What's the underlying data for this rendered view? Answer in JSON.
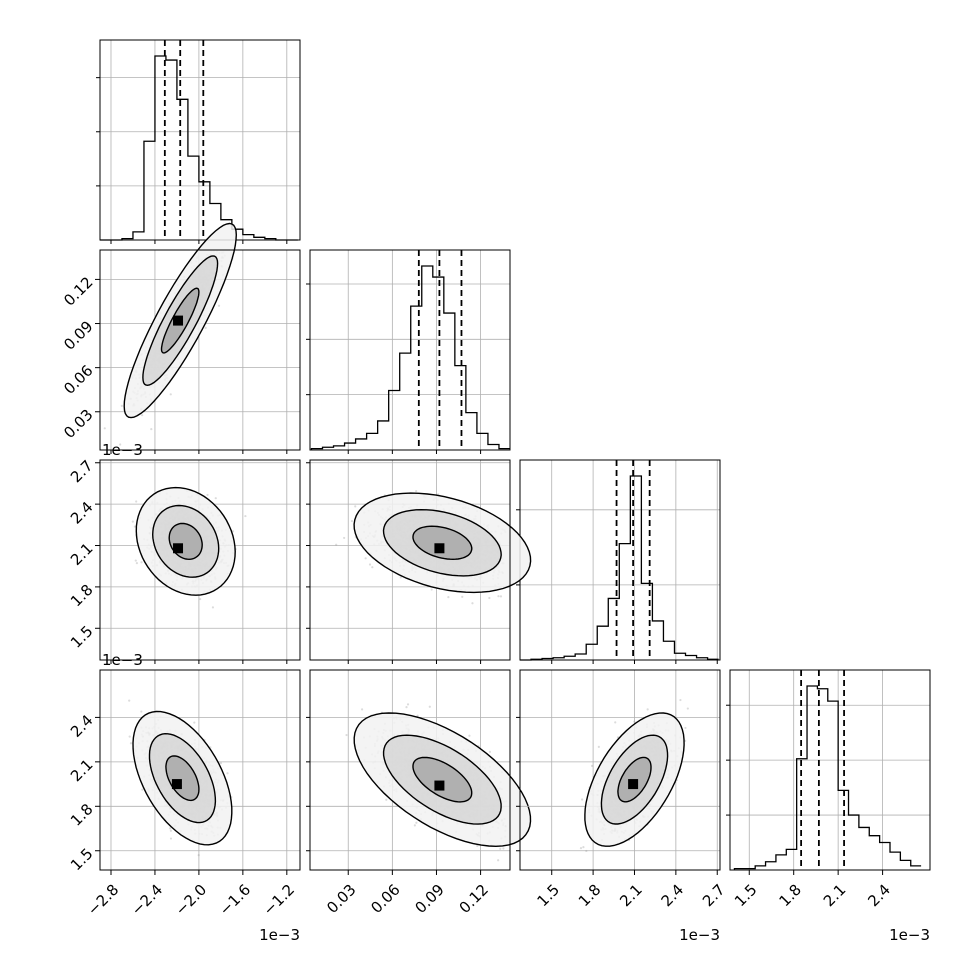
{
  "chart_data": {
    "type": "corner",
    "n_params": 4,
    "grid": true,
    "parameters": [
      {
        "index": 0,
        "range": [
          -2.9,
          -1.08
        ],
        "ticks": [
          -2.8,
          -2.4,
          -2.0,
          -1.6,
          -1.2
        ],
        "tick_labels": [
          "−2.8",
          "−2.4",
          "−2.0",
          "−1.6",
          "−1.2"
        ],
        "offset_label": "1e−3",
        "quantiles": [
          -2.31,
          -2.17,
          -1.96
        ],
        "histogram": {
          "edges": [
            -2.9,
            -2.8,
            -2.7,
            -2.6,
            -2.5,
            -2.4,
            -2.3,
            -2.2,
            -2.1,
            -2.0,
            -1.9,
            -1.8,
            -1.7,
            -1.6,
            -1.5,
            -1.4,
            -1.3,
            -1.2,
            -1.1
          ],
          "counts": [
            0,
            0,
            1,
            6,
            73,
            136,
            133,
            104,
            62,
            43,
            27,
            15,
            8,
            4,
            2,
            1,
            0,
            0
          ]
        }
      },
      {
        "index": 1,
        "range": [
          0.004,
          0.14
        ],
        "ticks": [
          0.03,
          0.06,
          0.09,
          0.12
        ],
        "tick_labels": [
          "0.03",
          "0.06",
          "0.09",
          "0.12"
        ],
        "offset_label": "",
        "quantiles": [
          0.078,
          0.092,
          0.107
        ],
        "histogram": {
          "edges": [
            0.005,
            0.0125,
            0.02,
            0.0275,
            0.035,
            0.0425,
            0.05,
            0.0575,
            0.065,
            0.0725,
            0.08,
            0.0875,
            0.095,
            0.1025,
            0.11,
            0.1175,
            0.125,
            0.1325,
            0.14
          ],
          "counts": [
            1,
            2,
            3,
            5,
            8,
            12,
            21,
            43,
            70,
            104,
            133,
            125,
            99,
            61,
            27,
            12,
            4,
            1
          ]
        }
      },
      {
        "index": 2,
        "range": [
          1.27,
          2.72
        ],
        "ticks": [
          1.5,
          1.8,
          2.1,
          2.4,
          2.7
        ],
        "tick_labels": [
          "1.5",
          "1.8",
          "2.1",
          "2.4",
          "2.7"
        ],
        "offset_label": "1e−3",
        "quantiles": [
          1.97,
          2.09,
          2.21
        ],
        "histogram": {
          "edges": [
            1.27,
            1.35,
            1.43,
            1.51,
            1.59,
            1.67,
            1.75,
            1.83,
            1.91,
            1.99,
            2.07,
            2.15,
            2.23,
            2.31,
            2.39,
            2.47,
            2.55,
            2.63,
            2.71
          ],
          "counts": [
            0,
            1,
            2,
            3,
            5,
            8,
            21,
            45,
            82,
            155,
            245,
            102,
            52,
            25,
            9,
            6,
            3,
            1
          ]
        }
      },
      {
        "index": 3,
        "range": [
          1.37,
          2.72
        ],
        "ticks": [
          1.5,
          1.8,
          2.1,
          2.4
        ],
        "tick_labels": [
          "1.5",
          "1.8",
          "2.1",
          "2.4"
        ],
        "offset_label": "1e−3",
        "quantiles": [
          1.85,
          1.97,
          2.14
        ],
        "histogram": {
          "edges": [
            1.4,
            1.47,
            1.54,
            1.61,
            1.68,
            1.75,
            1.82,
            1.89,
            1.96,
            2.03,
            2.1,
            2.17,
            2.24,
            2.31,
            2.38,
            2.45,
            2.52,
            2.59,
            2.66
          ],
          "counts": [
            1,
            1,
            3,
            6,
            11,
            15,
            81,
            134,
            132,
            123,
            58,
            40,
            31,
            25,
            20,
            13,
            7,
            3
          ]
        }
      }
    ],
    "pairs": [
      {
        "row": 1,
        "col": 0,
        "center": [
          -2.17,
          0.092
        ],
        "sd": [
          0.17,
          0.022
        ],
        "rho": 0.88,
        "peak": [
          -2.19,
          0.092
        ],
        "contour_levels": [
          1.0,
          2.0,
          3.0
        ]
      },
      {
        "row": 2,
        "col": 0,
        "center": [
          -2.12,
          2.13
        ],
        "sd": [
          0.15,
          0.13
        ],
        "rho": -0.2,
        "peak": [
          -2.19,
          2.08
        ],
        "contour_levels": [
          1.0,
          2.0,
          3.0
        ]
      },
      {
        "row": 2,
        "col": 1,
        "center": [
          0.094,
          2.12
        ],
        "sd": [
          0.02,
          0.12
        ],
        "rho": -0.35,
        "peak": [
          0.092,
          2.08
        ],
        "contour_levels": [
          1.0,
          2.0,
          3.0
        ]
      },
      {
        "row": 3,
        "col": 0,
        "center": [
          -2.15,
          1.99
        ],
        "sd": [
          0.15,
          0.15
        ],
        "rho": -0.5,
        "peak": [
          -2.2,
          1.95
        ],
        "contour_levels": [
          1.0,
          2.0,
          3.0
        ]
      },
      {
        "row": 3,
        "col": 1,
        "center": [
          0.094,
          1.98
        ],
        "sd": [
          0.02,
          0.15
        ],
        "rho": -0.6,
        "peak": [
          0.092,
          1.94
        ],
        "contour_levels": [
          1.0,
          2.0,
          3.0
        ]
      },
      {
        "row": 3,
        "col": 2,
        "center": [
          2.1,
          1.98
        ],
        "sd": [
          0.12,
          0.15
        ],
        "rho": 0.55,
        "peak": [
          2.09,
          1.95
        ],
        "contour_levels": [
          1.0,
          2.0,
          3.0
        ]
      }
    ],
    "style": {
      "line_color": "#000000",
      "grid_color": "#b0b0b0",
      "scatter_color": "#9a9a9a",
      "density_color": "#000000"
    }
  }
}
